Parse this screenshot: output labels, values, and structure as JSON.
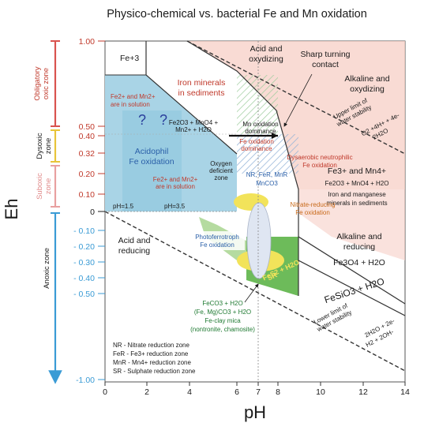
{
  "title": "Physico-chemical vs. bacterial Fe and Mn oxidation",
  "axes": {
    "x_label": "pH",
    "y_label": "Eh",
    "x_ticks": [
      "0",
      "2",
      "4",
      "6",
      "7",
      "8",
      "10",
      "12",
      "14"
    ],
    "y_ticks_red": [
      "1.00",
      "0.50",
      "0.40",
      "0.32",
      "0.20",
      "0.10"
    ],
    "y_tick_zero": "0",
    "y_ticks_blue": [
      "- 0.10",
      "- 0.20",
      "- 0.30",
      "- 0.40",
      "- 0.50",
      "-1.00"
    ]
  },
  "zones": {
    "obligatory": "Obligatory oxic zone",
    "dysoxic": "Dysoxic zone",
    "suboxic": "Suboxic zone",
    "anoxic": "Anoxic zone"
  },
  "labels": {
    "fe3": "Fe+3",
    "acid_oxidizing": "Acid and oxydizing",
    "sharp_contact": "Sharp turning contact",
    "alkaline_oxidizing": "Alkaline and oxydizing",
    "iron_minerals": "Iron minerals in sediments",
    "fe_mn_solution_1": "Fe2+ and Mn2+ are in solution",
    "upper_limit": "Upper limit of water stability",
    "o2_reaction_1": "O2 +4H+ + 4e-",
    "o2_reaction_2": "2H2O",
    "q1": "?",
    "q2": "?",
    "fe2o3_eq": "Fe2O3 + MnO4 + Mn2+ + H2O",
    "mn_dominance": "Mn oxidation dominance",
    "fe_dominance": "Fe oxidation dominance",
    "acidophil": "Acidophil Fe oxidation",
    "oxygen_deficient": "Oxygen deficient zone",
    "dysaerobic": "Dysaerobic neutrophilic Fe oxidation",
    "fe3_mn4": "Fe3+ and Mn4+",
    "fe2o3_mno4": "Fe2O3 + MnO4 + H2O",
    "iron_manganese": "Iron and manganese minerals in sediments",
    "fe_mn_solution_2": "Fe2+ and Mn2+ are in solution",
    "nr_fer": "NR, FeR, MnR",
    "mnco3": "MnCO3",
    "nitrate_reducing": "Nitrate-reducing Fe oxidation",
    "ph15": "pH=1.5",
    "ph35": "pH=3.5",
    "acid_reducing": "Acid and reducing",
    "photoferrotroph": "Photoferrotroph Fe oxidation",
    "alkaline_reducing": "Alkaline and reducing",
    "fe3o4": "Fe3O4 + H2O",
    "fes2": "FeS2 + H2O",
    "sr": "SR",
    "feco3": "FeCO3 + H2O",
    "femg": "(Fe, Mg)CO3 + H2O",
    "fe_clay": "Fe-clay mica",
    "nontronite": "(nontronite, chamosite)",
    "fesio3": "FeSiO3 + H2O",
    "lower_limit": "Lower limit of water stability",
    "h2o_reaction_1": "2H2O + 2e-",
    "h2o_reaction_2": "H2 + 2OH-"
  },
  "legend": [
    "NR - Nitrate reduction zone",
    "FeR - Fe3+ reduction zone",
    "MnR - Mn4+ reduction zone",
    "SR - Sulphate reduction zone"
  ],
  "colors": {
    "acid_blue": "#a9d4e6",
    "alkaline_pink": "#f7cfc6",
    "green": "#6dbb5a",
    "yellow": "#f2e35a",
    "ellipse": "#dfe6f2",
    "oxic_red": "#d9534f",
    "dysoxic_yellow": "#e8c43a",
    "suboxic_pink": "#e8a0a0",
    "anoxic_blue": "#3a9bd5"
  }
}
